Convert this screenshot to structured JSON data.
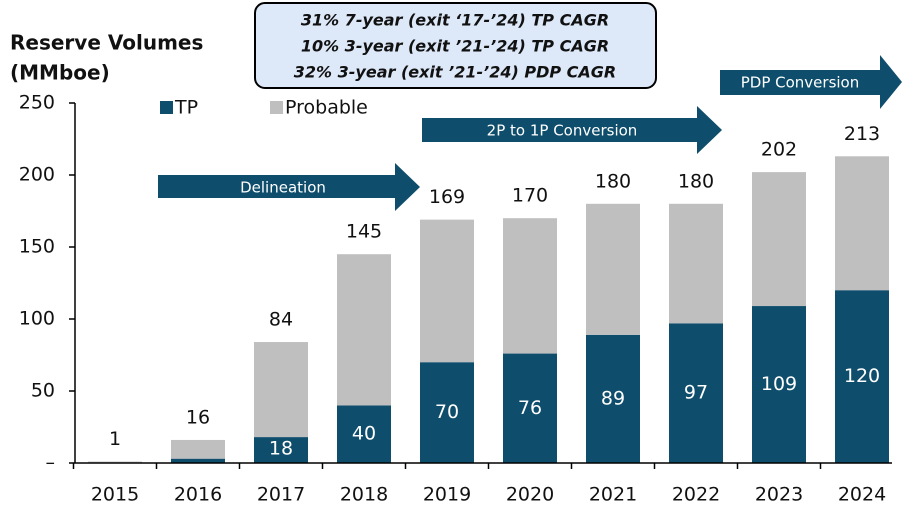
{
  "chart_data": {
    "type": "stacked_bar",
    "title_lines": [
      "Reserve Volumes",
      "(MMboe)"
    ],
    "annotation_lines": [
      "31% 7-year (exit ‘17-’24) TP CAGR",
      "10% 3-year (exit ’21-’24) TP CAGR",
      "32% 3-year (exit ’21-’24) PDP CAGR"
    ],
    "arrows": [
      "Delineation",
      "2P to 1P Conversion",
      "PDP Conversion"
    ],
    "categories": [
      "2015",
      "2016",
      "2017",
      "2018",
      "2019",
      "2020",
      "2021",
      "2022",
      "2023",
      "2024"
    ],
    "series": [
      {
        "name": "TP",
        "color": "#0e4d6b",
        "values": [
          0,
          3,
          18,
          40,
          70,
          76,
          89,
          97,
          109,
          120
        ],
        "value_labels": [
          null,
          null,
          "18",
          "40",
          "70",
          "76",
          "89",
          "97",
          "109",
          "120"
        ]
      },
      {
        "name": "Probable",
        "color": "#bfbfbf",
        "values": [
          1,
          13,
          66,
          105,
          99,
          94,
          91,
          83,
          93,
          93
        ]
      }
    ],
    "totals": [
      1,
      16,
      84,
      145,
      169,
      170,
      180,
      180,
      202,
      213
    ],
    "ylim": [
      0,
      250
    ],
    "yticks": [
      {
        "value": 0,
        "label": "–"
      },
      50,
      100,
      150,
      200,
      250
    ]
  }
}
